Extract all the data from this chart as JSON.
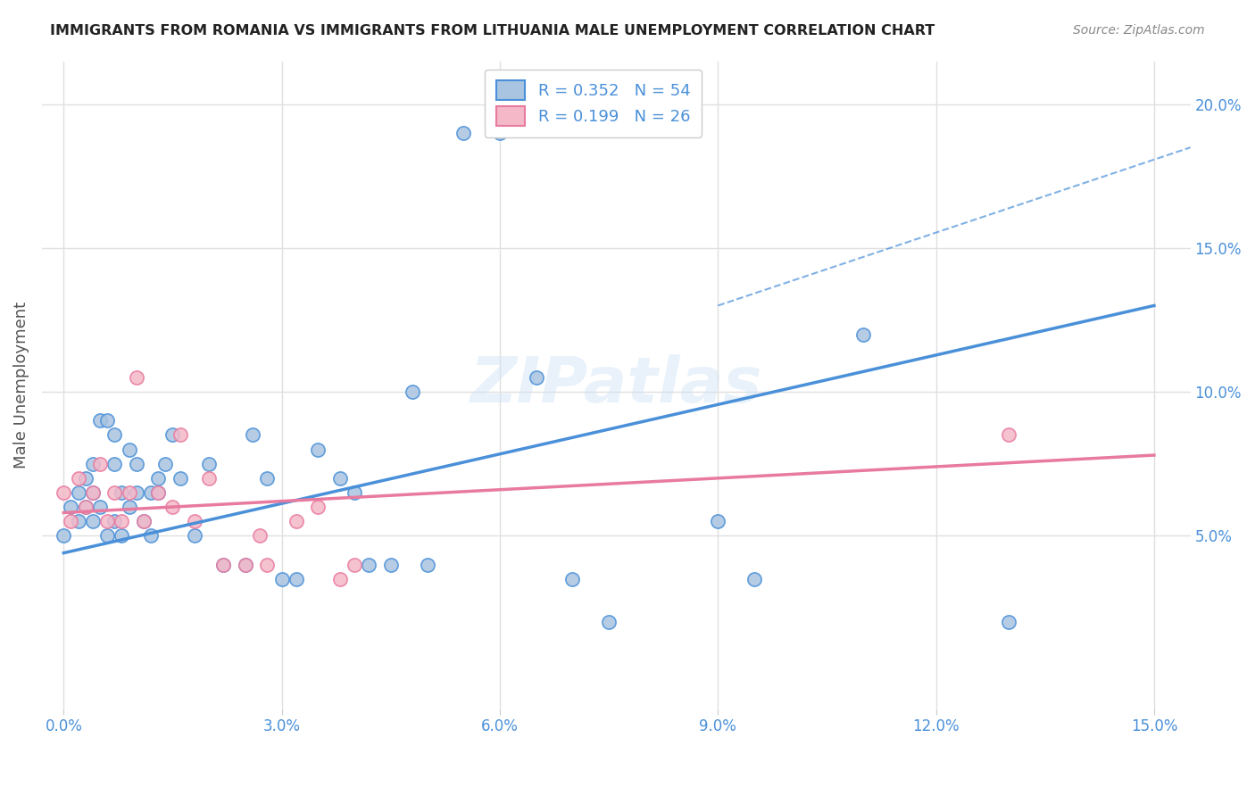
{
  "title": "IMMIGRANTS FROM ROMANIA VS IMMIGRANTS FROM LITHUANIA MALE UNEMPLOYMENT CORRELATION CHART",
  "source": "Source: ZipAtlas.com",
  "xlabel_ticks": [
    "0.0%",
    "3.0%",
    "6.0%",
    "9.0%",
    "12.0%",
    "15.0%"
  ],
  "xlabel_vals": [
    0.0,
    0.03,
    0.06,
    0.09,
    0.12,
    0.15
  ],
  "ylabel_ticks": [
    "5.0%",
    "10.0%",
    "15.0%",
    "20.0%"
  ],
  "ylabel_vals": [
    0.05,
    0.1,
    0.15,
    0.2
  ],
  "ylabel_label": "Male Unemployment",
  "xlim": [
    -0.003,
    0.155
  ],
  "ylim": [
    -0.01,
    0.215
  ],
  "watermark": "ZIPatlas",
  "romania_R": "0.352",
  "romania_N": "54",
  "lithuania_R": "0.199",
  "lithuania_N": "26",
  "romania_color": "#a8c4e0",
  "romania_line_color": "#4a90d9",
  "lithuania_color": "#f4b8c8",
  "lithuania_line_color": "#e87a9f",
  "scatter_alpha": 0.85,
  "scatter_size": 120,
  "romania_x": [
    0.0,
    0.001,
    0.002,
    0.002,
    0.003,
    0.003,
    0.004,
    0.004,
    0.004,
    0.005,
    0.005,
    0.006,
    0.006,
    0.007,
    0.007,
    0.007,
    0.008,
    0.008,
    0.009,
    0.009,
    0.01,
    0.01,
    0.011,
    0.012,
    0.012,
    0.013,
    0.013,
    0.014,
    0.015,
    0.016,
    0.018,
    0.02,
    0.022,
    0.025,
    0.026,
    0.028,
    0.03,
    0.032,
    0.035,
    0.038,
    0.04,
    0.042,
    0.045,
    0.048,
    0.05,
    0.055,
    0.06,
    0.065,
    0.07,
    0.075,
    0.09,
    0.095,
    0.11,
    0.13
  ],
  "romania_y": [
    0.05,
    0.06,
    0.055,
    0.065,
    0.06,
    0.07,
    0.055,
    0.075,
    0.065,
    0.06,
    0.09,
    0.09,
    0.05,
    0.085,
    0.075,
    0.055,
    0.065,
    0.05,
    0.08,
    0.06,
    0.065,
    0.075,
    0.055,
    0.065,
    0.05,
    0.065,
    0.07,
    0.075,
    0.085,
    0.07,
    0.05,
    0.075,
    0.04,
    0.04,
    0.085,
    0.07,
    0.035,
    0.035,
    0.08,
    0.07,
    0.065,
    0.04,
    0.04,
    0.1,
    0.04,
    0.19,
    0.19,
    0.105,
    0.035,
    0.02,
    0.055,
    0.035,
    0.12,
    0.02
  ],
  "lithuania_x": [
    0.0,
    0.001,
    0.002,
    0.003,
    0.004,
    0.005,
    0.006,
    0.007,
    0.008,
    0.009,
    0.01,
    0.011,
    0.013,
    0.015,
    0.016,
    0.018,
    0.02,
    0.022,
    0.025,
    0.027,
    0.028,
    0.032,
    0.035,
    0.038,
    0.04,
    0.13
  ],
  "lithuania_y": [
    0.065,
    0.055,
    0.07,
    0.06,
    0.065,
    0.075,
    0.055,
    0.065,
    0.055,
    0.065,
    0.105,
    0.055,
    0.065,
    0.06,
    0.085,
    0.055,
    0.07,
    0.04,
    0.04,
    0.05,
    0.04,
    0.055,
    0.06,
    0.035,
    0.04,
    0.085
  ],
  "romania_trend_x": [
    0.0,
    0.15
  ],
  "romania_trend_y": [
    0.044,
    0.13
  ],
  "lithuania_trend_x": [
    0.0,
    0.15
  ],
  "lithuania_trend_y": [
    0.058,
    0.078
  ],
  "dashed_line_x": [
    0.09,
    0.155
  ],
  "dashed_line_y": [
    0.13,
    0.185
  ],
  "grid_color": "#e0e0e0",
  "background_color": "#ffffff"
}
